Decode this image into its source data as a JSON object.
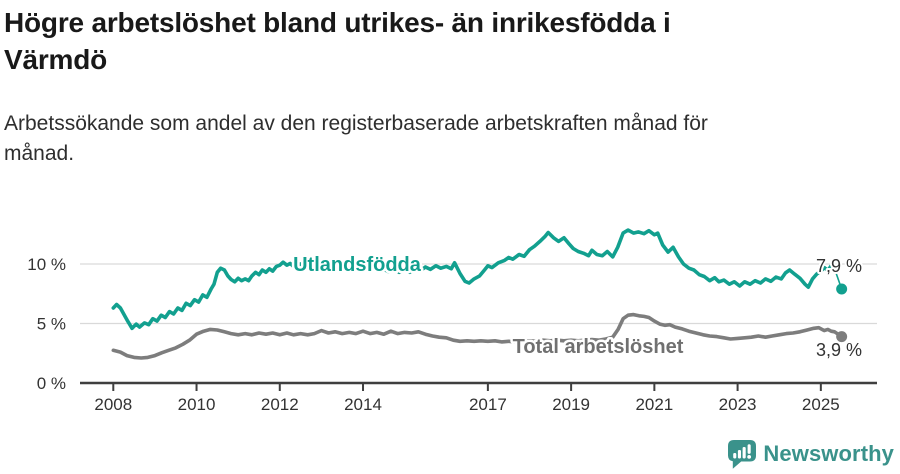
{
  "header": {
    "title_lines": [
      "Högre arbetslöshet bland utrikes- än inrikesfödda i",
      "Värmdö"
    ],
    "subtitle_lines": [
      "Arbetssökande som andel av den registerbaserade arbetskraften månad för",
      "månad."
    ]
  },
  "footer": {
    "brand": "Newsworthy"
  },
  "colors": {
    "background": "#ffffff",
    "title_text": "#191919",
    "subtitle_text": "#2e2e2e",
    "axis_text": "#333333",
    "gridline": "#d9d9d9",
    "axis_line": "#3f3f3f",
    "value_label": "#333333",
    "series_utlandsfodda": "#12a08f",
    "series_total": "#7d7d7d",
    "series_total_label": "#707070",
    "logo_teal": "#3a928b"
  },
  "chart_data": {
    "type": "line",
    "title": "Högre arbetslöshet bland utrikes- än inrikesfödda i Värmdö",
    "subtitle": "Arbetssökande som andel av den registerbaserade arbetskraften månad för månad.",
    "unit": "%",
    "x_axis": {
      "ticks": [
        2008,
        2010,
        2012,
        2014,
        2017,
        2019,
        2021,
        2023,
        2025
      ],
      "range_years": [
        2008,
        2025.5
      ],
      "grid": false
    },
    "y_axis": {
      "ticks": [
        0,
        5,
        10
      ],
      "tick_labels": [
        "0 %",
        "5 %",
        "10 %"
      ],
      "gridlines": [
        5,
        10
      ],
      "range": [
        0,
        13.2
      ]
    },
    "legend_position": "inline-labels",
    "series": [
      {
        "id": "utlandsfodda",
        "name": "Utlandsfödda",
        "color": "#12a08f",
        "label_color": "#12a08f",
        "end_value": 7.9,
        "end_label": "7,9 %",
        "points": [
          [
            2008.0,
            6.3
          ],
          [
            2008.08,
            6.6
          ],
          [
            2008.17,
            6.3
          ],
          [
            2008.33,
            5.3
          ],
          [
            2008.45,
            4.6
          ],
          [
            2008.55,
            4.95
          ],
          [
            2008.63,
            4.7
          ],
          [
            2008.75,
            5.05
          ],
          [
            2008.85,
            4.9
          ],
          [
            2008.95,
            5.4
          ],
          [
            2009.05,
            5.2
          ],
          [
            2009.15,
            5.7
          ],
          [
            2009.25,
            5.5
          ],
          [
            2009.35,
            6.0
          ],
          [
            2009.45,
            5.8
          ],
          [
            2009.55,
            6.3
          ],
          [
            2009.65,
            6.1
          ],
          [
            2009.75,
            6.7
          ],
          [
            2009.85,
            6.5
          ],
          [
            2009.95,
            7.0
          ],
          [
            2010.05,
            6.8
          ],
          [
            2010.15,
            7.4
          ],
          [
            2010.25,
            7.2
          ],
          [
            2010.35,
            7.9
          ],
          [
            2010.42,
            8.3
          ],
          [
            2010.5,
            9.3
          ],
          [
            2010.58,
            9.65
          ],
          [
            2010.67,
            9.5
          ],
          [
            2010.75,
            9.0
          ],
          [
            2010.83,
            8.7
          ],
          [
            2010.92,
            8.5
          ],
          [
            2011.0,
            8.8
          ],
          [
            2011.08,
            8.6
          ],
          [
            2011.17,
            8.75
          ],
          [
            2011.25,
            8.6
          ],
          [
            2011.33,
            9.0
          ],
          [
            2011.42,
            9.3
          ],
          [
            2011.5,
            9.1
          ],
          [
            2011.58,
            9.5
          ],
          [
            2011.67,
            9.3
          ],
          [
            2011.75,
            9.6
          ],
          [
            2011.83,
            9.4
          ],
          [
            2011.92,
            9.8
          ],
          [
            2012.0,
            9.9
          ],
          [
            2012.08,
            10.15
          ],
          [
            2012.17,
            9.9
          ],
          [
            2012.25,
            10.05
          ],
          [
            2012.33,
            9.8
          ],
          [
            2012.5,
            10.0
          ],
          [
            2012.62,
            9.65
          ],
          [
            2012.75,
            9.85
          ],
          [
            2012.87,
            9.7
          ],
          [
            2013.0,
            9.9
          ],
          [
            2013.12,
            9.6
          ],
          [
            2013.25,
            9.8
          ],
          [
            2013.37,
            9.55
          ],
          [
            2013.5,
            9.75
          ],
          [
            2013.62,
            9.5
          ],
          [
            2013.75,
            9.7
          ],
          [
            2013.87,
            9.5
          ],
          [
            2014.0,
            9.7
          ],
          [
            2014.12,
            9.45
          ],
          [
            2014.25,
            9.6
          ],
          [
            2014.37,
            9.4
          ],
          [
            2014.5,
            9.55
          ],
          [
            2014.62,
            9.35
          ],
          [
            2014.75,
            9.55
          ],
          [
            2014.87,
            9.3
          ],
          [
            2015.0,
            9.5
          ],
          [
            2015.12,
            9.3
          ],
          [
            2015.25,
            9.55
          ],
          [
            2015.37,
            9.4
          ],
          [
            2015.5,
            9.75
          ],
          [
            2015.62,
            9.55
          ],
          [
            2015.75,
            9.85
          ],
          [
            2015.87,
            9.65
          ],
          [
            2016.0,
            9.8
          ],
          [
            2016.12,
            9.6
          ],
          [
            2016.2,
            10.1
          ],
          [
            2016.33,
            9.2
          ],
          [
            2016.45,
            8.55
          ],
          [
            2016.55,
            8.4
          ],
          [
            2016.67,
            8.75
          ],
          [
            2016.8,
            9.0
          ],
          [
            2016.92,
            9.5
          ],
          [
            2017.0,
            9.85
          ],
          [
            2017.1,
            9.7
          ],
          [
            2017.25,
            10.1
          ],
          [
            2017.4,
            10.3
          ],
          [
            2017.5,
            10.55
          ],
          [
            2017.6,
            10.4
          ],
          [
            2017.75,
            10.8
          ],
          [
            2017.87,
            10.65
          ],
          [
            2018.0,
            11.2
          ],
          [
            2018.12,
            11.5
          ],
          [
            2018.25,
            11.9
          ],
          [
            2018.37,
            12.3
          ],
          [
            2018.45,
            12.65
          ],
          [
            2018.58,
            12.2
          ],
          [
            2018.7,
            11.9
          ],
          [
            2018.83,
            12.2
          ],
          [
            2018.95,
            11.7
          ],
          [
            2019.05,
            11.3
          ],
          [
            2019.17,
            11.05
          ],
          [
            2019.3,
            10.9
          ],
          [
            2019.42,
            10.7
          ],
          [
            2019.5,
            11.15
          ],
          [
            2019.62,
            10.8
          ],
          [
            2019.75,
            10.7
          ],
          [
            2019.87,
            11.05
          ],
          [
            2020.0,
            10.6
          ],
          [
            2020.12,
            11.4
          ],
          [
            2020.25,
            12.6
          ],
          [
            2020.37,
            12.85
          ],
          [
            2020.5,
            12.6
          ],
          [
            2020.62,
            12.7
          ],
          [
            2020.75,
            12.55
          ],
          [
            2020.87,
            12.8
          ],
          [
            2021.0,
            12.45
          ],
          [
            2021.08,
            12.6
          ],
          [
            2021.2,
            11.6
          ],
          [
            2021.33,
            11.0
          ],
          [
            2021.45,
            11.4
          ],
          [
            2021.58,
            10.6
          ],
          [
            2021.7,
            10.0
          ],
          [
            2021.83,
            9.65
          ],
          [
            2021.95,
            9.5
          ],
          [
            2022.08,
            9.1
          ],
          [
            2022.2,
            8.95
          ],
          [
            2022.33,
            8.6
          ],
          [
            2022.45,
            8.85
          ],
          [
            2022.55,
            8.5
          ],
          [
            2022.67,
            8.65
          ],
          [
            2022.8,
            8.3
          ],
          [
            2022.92,
            8.5
          ],
          [
            2023.05,
            8.15
          ],
          [
            2023.17,
            8.5
          ],
          [
            2023.3,
            8.3
          ],
          [
            2023.42,
            8.6
          ],
          [
            2023.55,
            8.4
          ],
          [
            2023.67,
            8.75
          ],
          [
            2023.8,
            8.55
          ],
          [
            2023.92,
            8.9
          ],
          [
            2024.05,
            8.75
          ],
          [
            2024.15,
            9.25
          ],
          [
            2024.25,
            9.5
          ],
          [
            2024.37,
            9.15
          ],
          [
            2024.5,
            8.8
          ],
          [
            2024.62,
            8.3
          ],
          [
            2024.7,
            8.05
          ],
          [
            2024.8,
            8.75
          ],
          [
            2024.9,
            9.15
          ],
          [
            2025.0,
            9.4
          ],
          [
            2025.08,
            9.7
          ],
          [
            2025.17,
            9.45
          ],
          [
            2025.25,
            9.85
          ],
          [
            2025.33,
            9.6
          ],
          [
            2025.5,
            7.9
          ]
        ]
      },
      {
        "id": "total",
        "name": "Total arbetslöshet",
        "color": "#7d7d7d",
        "label_color": "#707070",
        "end_value": 3.9,
        "end_label": "3,9 %",
        "points": [
          [
            2008.0,
            2.75
          ],
          [
            2008.17,
            2.6
          ],
          [
            2008.33,
            2.3
          ],
          [
            2008.5,
            2.15
          ],
          [
            2008.67,
            2.1
          ],
          [
            2008.83,
            2.15
          ],
          [
            2009.0,
            2.3
          ],
          [
            2009.17,
            2.55
          ],
          [
            2009.33,
            2.75
          ],
          [
            2009.5,
            2.95
          ],
          [
            2009.67,
            3.25
          ],
          [
            2009.83,
            3.6
          ],
          [
            2010.0,
            4.1
          ],
          [
            2010.17,
            4.35
          ],
          [
            2010.33,
            4.5
          ],
          [
            2010.5,
            4.45
          ],
          [
            2010.67,
            4.3
          ],
          [
            2010.83,
            4.15
          ],
          [
            2011.0,
            4.05
          ],
          [
            2011.17,
            4.15
          ],
          [
            2011.33,
            4.05
          ],
          [
            2011.5,
            4.2
          ],
          [
            2011.67,
            4.1
          ],
          [
            2011.83,
            4.2
          ],
          [
            2012.0,
            4.05
          ],
          [
            2012.17,
            4.2
          ],
          [
            2012.33,
            4.05
          ],
          [
            2012.5,
            4.15
          ],
          [
            2012.67,
            4.05
          ],
          [
            2012.83,
            4.15
          ],
          [
            2013.0,
            4.4
          ],
          [
            2013.17,
            4.2
          ],
          [
            2013.33,
            4.3
          ],
          [
            2013.5,
            4.15
          ],
          [
            2013.67,
            4.25
          ],
          [
            2013.83,
            4.15
          ],
          [
            2014.0,
            4.35
          ],
          [
            2014.17,
            4.15
          ],
          [
            2014.33,
            4.25
          ],
          [
            2014.5,
            4.1
          ],
          [
            2014.67,
            4.35
          ],
          [
            2014.83,
            4.15
          ],
          [
            2015.0,
            4.25
          ],
          [
            2015.17,
            4.2
          ],
          [
            2015.33,
            4.3
          ],
          [
            2015.5,
            4.1
          ],
          [
            2015.67,
            3.95
          ],
          [
            2015.83,
            3.85
          ],
          [
            2016.0,
            3.8
          ],
          [
            2016.17,
            3.6
          ],
          [
            2016.33,
            3.5
          ],
          [
            2016.5,
            3.55
          ],
          [
            2016.67,
            3.5
          ],
          [
            2016.83,
            3.55
          ],
          [
            2017.0,
            3.5
          ],
          [
            2017.17,
            3.55
          ],
          [
            2017.33,
            3.45
          ],
          [
            2017.5,
            3.5
          ],
          [
            2017.67,
            3.45
          ],
          [
            2017.83,
            3.5
          ],
          [
            2018.0,
            3.55
          ],
          [
            2018.17,
            3.5
          ],
          [
            2018.33,
            3.6
          ],
          [
            2018.5,
            3.55
          ],
          [
            2018.67,
            3.6
          ],
          [
            2018.83,
            3.55
          ],
          [
            2019.0,
            3.6
          ],
          [
            2019.17,
            3.55
          ],
          [
            2019.33,
            3.6
          ],
          [
            2019.5,
            3.65
          ],
          [
            2019.67,
            3.6
          ],
          [
            2019.83,
            3.7
          ],
          [
            2020.0,
            3.85
          ],
          [
            2020.13,
            4.5
          ],
          [
            2020.25,
            5.4
          ],
          [
            2020.37,
            5.7
          ],
          [
            2020.5,
            5.75
          ],
          [
            2020.63,
            5.65
          ],
          [
            2020.75,
            5.6
          ],
          [
            2020.87,
            5.5
          ],
          [
            2021.0,
            5.2
          ],
          [
            2021.13,
            4.95
          ],
          [
            2021.25,
            4.85
          ],
          [
            2021.37,
            4.9
          ],
          [
            2021.5,
            4.7
          ],
          [
            2021.67,
            4.55
          ],
          [
            2021.83,
            4.35
          ],
          [
            2022.0,
            4.2
          ],
          [
            2022.17,
            4.05
          ],
          [
            2022.33,
            3.95
          ],
          [
            2022.5,
            3.9
          ],
          [
            2022.67,
            3.8
          ],
          [
            2022.83,
            3.7
          ],
          [
            2023.0,
            3.75
          ],
          [
            2023.17,
            3.8
          ],
          [
            2023.33,
            3.85
          ],
          [
            2023.5,
            3.95
          ],
          [
            2023.67,
            3.85
          ],
          [
            2023.83,
            3.95
          ],
          [
            2024.0,
            4.05
          ],
          [
            2024.17,
            4.15
          ],
          [
            2024.33,
            4.2
          ],
          [
            2024.5,
            4.3
          ],
          [
            2024.67,
            4.45
          ],
          [
            2024.83,
            4.6
          ],
          [
            2024.95,
            4.65
          ],
          [
            2025.08,
            4.4
          ],
          [
            2025.17,
            4.5
          ],
          [
            2025.25,
            4.35
          ],
          [
            2025.33,
            4.3
          ],
          [
            2025.5,
            3.9
          ]
        ]
      }
    ]
  }
}
